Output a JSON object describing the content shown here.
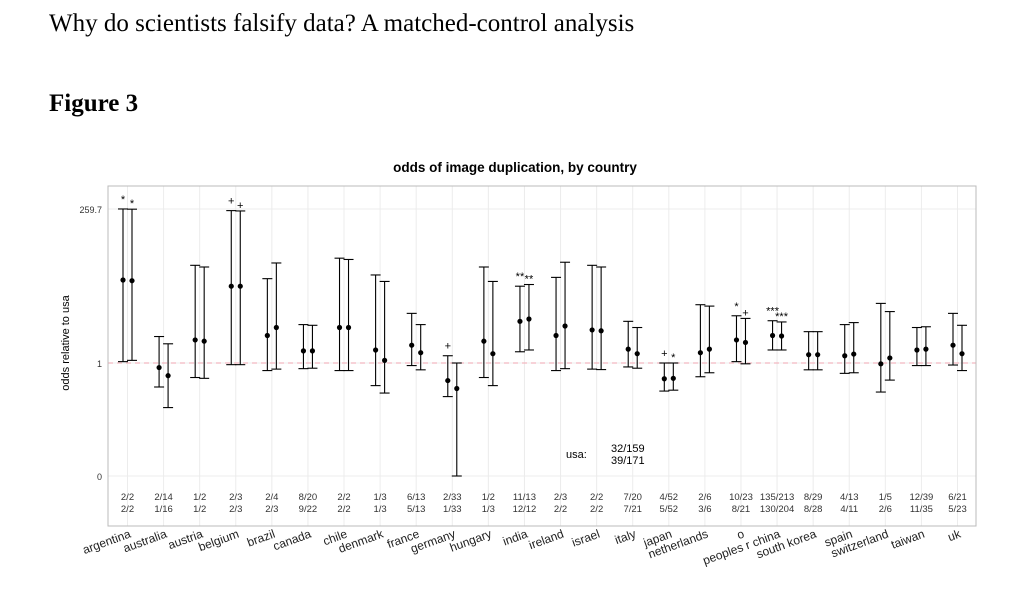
{
  "document": {
    "title": "Why do scientists falsify data? A matched-control analysis",
    "figure_label": "Figure 3"
  },
  "chart_data": {
    "type": "errorbar",
    "title": "odds of image duplication, by country",
    "xlabel": "",
    "ylabel": "odds relative to usa",
    "y_scale": "log",
    "y_ticks": [
      {
        "value": 0,
        "label": "0"
      },
      {
        "value": 1,
        "label": "1"
      },
      {
        "value": 259.7,
        "label": "259.7"
      }
    ],
    "reference_line": {
      "value": 1,
      "style": "dashed",
      "color": "#f2b8c0"
    },
    "grid": true,
    "usa_note": {
      "label": "usa:",
      "lines": [
        "32/159",
        "39/171"
      ]
    },
    "colors": {
      "marks": "#000000",
      "grid": "#ececec",
      "frame": "#bbbbbb",
      "ref_line": "#f2b8c0"
    },
    "categories": [
      {
        "name": "argentina",
        "counts": [
          "2/2",
          "2/2"
        ],
        "marks": [
          "*",
          "*"
        ],
        "estimates": [
          {
            "point": 20.0,
            "low": 1.05,
            "high": 260
          },
          {
            "point": 19.5,
            "low": 1.1,
            "high": 258
          }
        ]
      },
      {
        "name": "australia",
        "counts": [
          "2/14",
          "1/16"
        ],
        "marks": [
          "",
          ""
        ],
        "estimates": [
          {
            "point": 0.75,
            "low": 0.22,
            "high": 2.6
          },
          {
            "point": 0.45,
            "low": 0.06,
            "high": 2.0
          }
        ]
      },
      {
        "name": "austria",
        "counts": [
          "1/2",
          "1/2"
        ],
        "marks": [
          "",
          ""
        ],
        "estimates": [
          {
            "point": 2.3,
            "low": 0.4,
            "high": 34
          },
          {
            "point": 2.2,
            "low": 0.38,
            "high": 32
          }
        ]
      },
      {
        "name": "belgium",
        "counts": [
          "2/3",
          "2/3"
        ],
        "marks": [
          "+",
          "+"
        ],
        "estimates": [
          {
            "point": 16.0,
            "low": 0.9,
            "high": 245
          },
          {
            "point": 16.0,
            "low": 0.9,
            "high": 242
          }
        ]
      },
      {
        "name": "brazil",
        "counts": [
          "2/4",
          "2/3"
        ],
        "marks": [
          "",
          ""
        ],
        "estimates": [
          {
            "point": 2.7,
            "low": 0.62,
            "high": 21
          },
          {
            "point": 3.6,
            "low": 0.68,
            "high": 37
          }
        ]
      },
      {
        "name": "canada",
        "counts": [
          "8/20",
          "9/22"
        ],
        "marks": [
          "",
          ""
        ],
        "estimates": [
          {
            "point": 1.55,
            "low": 0.7,
            "high": 4.0
          },
          {
            "point": 1.55,
            "low": 0.72,
            "high": 3.9
          }
        ]
      },
      {
        "name": "chile",
        "counts": [
          "2/2",
          "2/2"
        ],
        "marks": [
          "",
          ""
        ],
        "estimates": [
          {
            "point": 3.6,
            "low": 0.62,
            "high": 44
          },
          {
            "point": 3.6,
            "low": 0.62,
            "high": 42
          }
        ]
      },
      {
        "name": "denmark",
        "counts": [
          "1/3",
          "1/3"
        ],
        "marks": [
          "",
          ""
        ],
        "estimates": [
          {
            "point": 1.6,
            "low": 0.24,
            "high": 24
          },
          {
            "point": 1.1,
            "low": 0.15,
            "high": 19
          }
        ]
      },
      {
        "name": "france",
        "counts": [
          "6/13",
          "5/13"
        ],
        "marks": [
          "",
          ""
        ],
        "estimates": [
          {
            "point": 1.9,
            "low": 0.85,
            "high": 6.0
          },
          {
            "point": 1.45,
            "low": 0.65,
            "high": 4.0
          }
        ]
      },
      {
        "name": "germany",
        "counts": [
          "2/33",
          "1/33"
        ],
        "marks": [
          "+",
          ""
        ],
        "estimates": [
          {
            "point": 0.33,
            "low": 0.12,
            "high": 1.3
          },
          {
            "point": 0.2,
            "low": 0.0008,
            "high": 1.0
          }
        ]
      },
      {
        "name": "hungary",
        "counts": [
          "1/2",
          "1/3"
        ],
        "marks": [
          "",
          ""
        ],
        "estimates": [
          {
            "point": 2.2,
            "low": 0.4,
            "high": 32
          },
          {
            "point": 1.4,
            "low": 0.24,
            "high": 19
          }
        ]
      },
      {
        "name": "india",
        "counts": [
          "11/13",
          "12/12"
        ],
        "marks": [
          "**",
          "**"
        ],
        "estimates": [
          {
            "point": 4.5,
            "low": 1.5,
            "high": 16
          },
          {
            "point": 4.9,
            "low": 1.6,
            "high": 17
          }
        ]
      },
      {
        "name": "ireland",
        "counts": [
          "2/3",
          "2/2"
        ],
        "marks": [
          "",
          ""
        ],
        "estimates": [
          {
            "point": 2.7,
            "low": 0.62,
            "high": 22
          },
          {
            "point": 3.8,
            "low": 0.7,
            "high": 38
          }
        ]
      },
      {
        "name": "israel",
        "counts": [
          "2/2",
          "2/2"
        ],
        "marks": [
          "",
          ""
        ],
        "estimates": [
          {
            "point": 3.3,
            "low": 0.68,
            "high": 34
          },
          {
            "point": 3.2,
            "low": 0.66,
            "high": 32
          }
        ]
      },
      {
        "name": "italy",
        "counts": [
          "7/20",
          "7/21"
        ],
        "marks": [
          "",
          ""
        ],
        "estimates": [
          {
            "point": 1.65,
            "low": 0.78,
            "high": 4.5
          },
          {
            "point": 1.4,
            "low": 0.72,
            "high": 3.6
          }
        ]
      },
      {
        "name": "japan",
        "counts": [
          "4/52",
          "5/52"
        ],
        "marks": [
          "+",
          "*"
        ],
        "estimates": [
          {
            "point": 0.37,
            "low": 0.17,
            "high": 1.0
          },
          {
            "point": 0.38,
            "low": 0.18,
            "high": 1.0
          }
        ]
      },
      {
        "name": "netherlands",
        "counts": [
          "2/6",
          "3/6"
        ],
        "marks": [
          "",
          ""
        ],
        "estimates": [
          {
            "point": 1.45,
            "low": 0.42,
            "high": 8.2
          },
          {
            "point": 1.65,
            "low": 0.54,
            "high": 7.8
          }
        ]
      },
      {
        "name": "o",
        "counts": [
          "10/23",
          "8/21"
        ],
        "marks": [
          "*",
          "+"
        ],
        "estimates": [
          {
            "point": 2.3,
            "low": 1.05,
            "high": 5.5
          },
          {
            "point": 2.1,
            "low": 0.95,
            "high": 5.0
          }
        ]
      },
      {
        "name": "peoples r china",
        "counts": [
          "135/213",
          "130/204"
        ],
        "marks": [
          "***",
          "***"
        ],
        "estimates": [
          {
            "point": 2.7,
            "low": 1.6,
            "high": 4.6
          },
          {
            "point": 2.65,
            "low": 1.6,
            "high": 4.4
          }
        ]
      },
      {
        "name": "south korea",
        "counts": [
          "8/29",
          "8/28"
        ],
        "marks": [
          "",
          ""
        ],
        "estimates": [
          {
            "point": 1.35,
            "low": 0.65,
            "high": 3.1
          },
          {
            "point": 1.35,
            "low": 0.65,
            "high": 3.1
          }
        ]
      },
      {
        "name": "spain",
        "counts": [
          "4/13",
          "4/11"
        ],
        "marks": [
          "",
          ""
        ],
        "estimates": [
          {
            "point": 1.3,
            "low": 0.52,
            "high": 4.0
          },
          {
            "point": 1.38,
            "low": 0.54,
            "high": 4.3
          }
        ]
      },
      {
        "name": "switzerland",
        "counts": [
          "1/5",
          "2/6"
        ],
        "marks": [
          "",
          ""
        ],
        "estimates": [
          {
            "point": 0.95,
            "low": 0.16,
            "high": 8.6
          },
          {
            "point": 1.2,
            "low": 0.34,
            "high": 6.4
          }
        ]
      },
      {
        "name": "taiwan",
        "counts": [
          "12/39",
          "11/35"
        ],
        "marks": [
          "",
          ""
        ],
        "estimates": [
          {
            "point": 1.6,
            "low": 0.85,
            "high": 3.6
          },
          {
            "point": 1.65,
            "low": 0.85,
            "high": 3.7
          }
        ]
      },
      {
        "name": "uk",
        "counts": [
          "6/21",
          "5/23"
        ],
        "marks": [
          "",
          ""
        ],
        "estimates": [
          {
            "point": 1.9,
            "low": 0.88,
            "high": 6.0
          },
          {
            "point": 1.4,
            "low": 0.62,
            "high": 3.9
          }
        ]
      }
    ]
  }
}
